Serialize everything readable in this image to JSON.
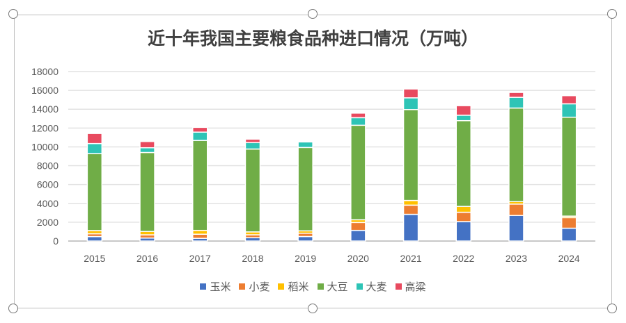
{
  "chart_data": {
    "type": "bar",
    "stacked": true,
    "title": "近十年我国主要粮食品种进口情况（万吨）",
    "categories": [
      "2015",
      "2016",
      "2017",
      "2018",
      "2019",
      "2020",
      "2021",
      "2022",
      "2023",
      "2024"
    ],
    "ylim": [
      0,
      18000
    ],
    "yticks": [
      0,
      2000,
      4000,
      6000,
      8000,
      10000,
      12000,
      14000,
      16000,
      18000
    ],
    "grid": true,
    "legend": "bottom",
    "series": [
      {
        "name": "玉米",
        "color": "#4472c4",
        "values": [
          473,
          317,
          283,
          352,
          479,
          1130,
          2835,
          2062,
          2713,
          1364
        ]
      },
      {
        "name": "小麦",
        "color": "#ed7d31",
        "values": [
          301,
          341,
          442,
          310,
          349,
          838,
          977,
          996,
          1210,
          1118
        ]
      },
      {
        "name": "稻米",
        "color": "#ffc000",
        "values": [
          338,
          356,
          403,
          308,
          255,
          294,
          496,
          619,
          263,
          165
        ]
      },
      {
        "name": "大豆",
        "color": "#70ad47",
        "values": [
          8169,
          8391,
          9553,
          8803,
          8851,
          10033,
          9652,
          9108,
          9941,
          10503
        ]
      },
      {
        "name": "大麦",
        "color": "#2ec4b6",
        "values": [
          1073,
          500,
          886,
          682,
          593,
          808,
          1248,
          576,
          1133,
          1425
        ]
      },
      {
        "name": "高粱",
        "color": "#e84a5f",
        "values": [
          1070,
          665,
          506,
          365,
          83,
          481,
          942,
          1014,
          520,
          865
        ]
      }
    ]
  }
}
